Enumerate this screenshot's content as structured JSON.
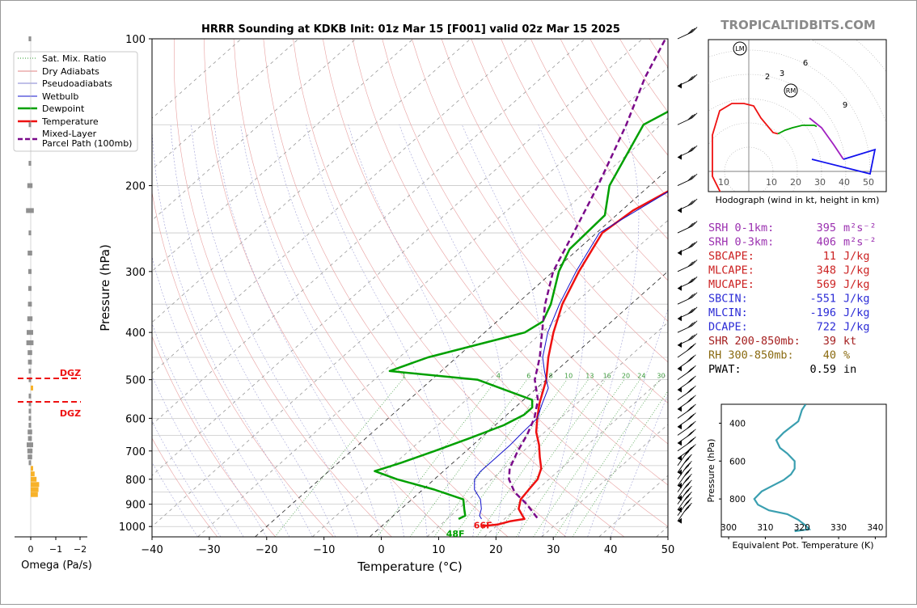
{
  "title": "HRRR Sounding at KDKB Init: 01z Mar 15 [F001] valid 02z Mar 15 2025",
  "watermark": "TROPICALTIDBITS.COM",
  "main": {
    "xlabel": "Temperature (°C)",
    "ylabel": "Pressure (hPa)",
    "x_ticks": [
      "−40",
      "−30",
      "−20",
      "−10",
      "0",
      "10",
      "20",
      "30",
      "40",
      "50"
    ],
    "y_ticks": [
      "100",
      "200",
      "300",
      "400",
      "500",
      "600",
      "700",
      "800",
      "900",
      "1000"
    ]
  },
  "legend": [
    "Sat. Mix. Ratio",
    "Dry Adiabats",
    "Pseudoadiabats",
    "Wetbulb",
    "Dewpoint",
    "Temperature",
    "Mixed-Layer",
    "Parcel Path (100mb)"
  ],
  "mix_ratio_labels": [
    "1",
    "4",
    "6",
    "8",
    "10",
    "13",
    "16",
    "20",
    "24",
    "30",
    "36"
  ],
  "surface_labels": {
    "dewpoint": "48F",
    "temperature": "66F"
  },
  "omega": {
    "label": "Omega (Pa/s)",
    "ticks": [
      "0",
      "−1",
      "−2"
    ],
    "dgz_label": "DGZ"
  },
  "hodograph": {
    "label": "Hodograph (wind in kt, height in km)",
    "x_ticks": [
      "10",
      "10",
      "20",
      "30",
      "40",
      "50"
    ],
    "point_labels": [
      "2",
      "3",
      "6",
      "9"
    ],
    "markers": [
      "LM",
      "RM"
    ]
  },
  "theta_e": {
    "xlabel": "Equivalent Pot. Temperature (K)",
    "ylabel": "Pressure (hPa)",
    "x_ticks": [
      "300",
      "310",
      "320",
      "330",
      "340"
    ],
    "y_ticks": [
      "400",
      "600",
      "800"
    ]
  },
  "indices": [
    {
      "label": "SRH 0-1km:",
      "value": "395",
      "unit": "m²s⁻²",
      "color": "#9b30b0"
    },
    {
      "label": "SRH 0-3km:",
      "value": "406",
      "unit": "m²s⁻²",
      "color": "#9b30b0"
    },
    {
      "label": "SBCAPE:",
      "value": "11",
      "unit": "J/kg",
      "color": "#cc2222"
    },
    {
      "label": "MLCAPE:",
      "value": "348",
      "unit": "J/kg",
      "color": "#cc2222"
    },
    {
      "label": "MUCAPE:",
      "value": "569",
      "unit": "J/kg",
      "color": "#cc2222"
    },
    {
      "label": "SBCIN:",
      "value": "-551",
      "unit": "J/kg",
      "color": "#2b2bd6"
    },
    {
      "label": "MLCIN:",
      "value": "-196",
      "unit": "J/kg",
      "color": "#2b2bd6"
    },
    {
      "label": "DCAPE:",
      "value": "722",
      "unit": "J/kg",
      "color": "#2b2bd6"
    },
    {
      "label": "SHR 200-850mb:",
      "value": "39",
      "unit": "kt",
      "color": "#a52020"
    },
    {
      "label": "RH 300-850mb:",
      "value": "40",
      "unit": "%",
      "color": "#8a6a10"
    },
    {
      "label": "PWAT:",
      "value": "0.59",
      "unit": "in",
      "color": "#000000"
    }
  ],
  "chart_data": [
    {
      "type": "line",
      "title": "HRRR Sounding at KDKB Init: 01z Mar 15 [F001] valid 02z Mar 15 2025",
      "xlabel": "Temperature (°C)",
      "ylabel": "Pressure (hPa)",
      "xlim": [
        -40,
        50
      ],
      "ylim": [
        1050,
        100
      ],
      "y_scale": "log",
      "series": [
        {
          "name": "Temperature",
          "color": "#ee1111",
          "points": [
            [
              998,
              17.5
            ],
            [
              990,
              20
            ],
            [
              975,
              21.5
            ],
            [
              965,
              23.5
            ],
            [
              950,
              22.5
            ],
            [
              920,
              20.5
            ],
            [
              880,
              19
            ],
            [
              840,
              18.5
            ],
            [
              800,
              18
            ],
            [
              760,
              16.5
            ],
            [
              720,
              14
            ],
            [
              680,
              11.5
            ],
            [
              640,
              8.5
            ],
            [
              600,
              6
            ],
            [
              560,
              3.5
            ],
            [
              500,
              0
            ],
            [
              450,
              -4
            ],
            [
              400,
              -8
            ],
            [
              350,
              -12
            ],
            [
              300,
              -15.5
            ],
            [
              250,
              -19
            ],
            [
              225,
              -18
            ],
            [
              200,
              -15
            ],
            [
              160,
              -7
            ],
            [
              140,
              -3
            ],
            [
              120,
              1.5
            ],
            [
              100,
              2.5
            ]
          ]
        },
        {
          "name": "Dewpoint",
          "color": "#00a000",
          "points": [
            [
              965,
              12
            ],
            [
              950,
              12.5
            ],
            [
              920,
              11
            ],
            [
              880,
              9
            ],
            [
              840,
              2
            ],
            [
              800,
              -6.5
            ],
            [
              770,
              -12
            ],
            [
              760,
              -11
            ],
            [
              740,
              -9
            ],
            [
              700,
              -5.5
            ],
            [
              660,
              -2
            ],
            [
              620,
              1.5
            ],
            [
              590,
              3
            ],
            [
              570,
              3
            ],
            [
              550,
              1.5
            ],
            [
              500,
              -12
            ],
            [
              480,
              -29
            ],
            [
              450,
              -25
            ],
            [
              420,
              -18
            ],
            [
              400,
              -13
            ],
            [
              380,
              -12
            ],
            [
              350,
              -14
            ],
            [
              300,
              -19
            ],
            [
              270,
              -21.5
            ],
            [
              230,
              -22
            ],
            [
              200,
              -27
            ],
            [
              150,
              -33
            ],
            [
              130,
              -29
            ],
            [
              110,
              -26
            ],
            [
              100,
              -25
            ]
          ]
        },
        {
          "name": "Wetbulb",
          "color": "#1111cc",
          "points": [
            [
              965,
              16
            ],
            [
              950,
              15
            ],
            [
              920,
              14
            ],
            [
              880,
              12
            ],
            [
              840,
              9
            ],
            [
              800,
              7
            ],
            [
              770,
              6.5
            ],
            [
              720,
              6.5
            ],
            [
              680,
              6.5
            ],
            [
              640,
              6.2
            ],
            [
              600,
              6
            ],
            [
              560,
              4
            ],
            [
              520,
              2
            ],
            [
              500,
              0
            ],
            [
              480,
              -2
            ],
            [
              450,
              -5
            ],
            [
              400,
              -9
            ],
            [
              350,
              -12.5
            ],
            [
              300,
              -16
            ],
            [
              250,
              -19.5
            ],
            [
              200,
              -15
            ],
            [
              160,
              -7
            ],
            [
              140,
              -3
            ],
            [
              120,
              1.5
            ],
            [
              100,
              2.5
            ]
          ]
        },
        {
          "name": "Mixed-Layer Parcel Path (100mb)",
          "color": "#7a0a8a",
          "points": [
            [
              960,
              25.5
            ],
            [
              900,
              21
            ],
            [
              850,
              16.5
            ],
            [
              800,
              13
            ],
            [
              760,
              11
            ],
            [
              700,
              9
            ],
            [
              650,
              7.5
            ],
            [
              600,
              5.5
            ],
            [
              550,
              2.5
            ],
            [
              500,
              -2
            ],
            [
              450,
              -5.5
            ],
            [
              400,
              -10
            ],
            [
              350,
              -15
            ],
            [
              300,
              -20
            ],
            [
              250,
              -24
            ],
            [
              200,
              -29
            ],
            [
              150,
              -36
            ],
            [
              120,
              -42
            ],
            [
              100,
              -46
            ]
          ]
        }
      ]
    },
    {
      "type": "line",
      "title": "",
      "xlabel": "Hodograph (wind in kt, height in km)",
      "series": [
        {
          "name": "0-1 km",
          "color": "#ee1111",
          "points": [
            [
              -8,
              -16
            ],
            [
              -15,
              -2
            ],
            [
              -15,
              15
            ],
            [
              -12,
              25
            ],
            [
              -7,
              28
            ],
            [
              -2,
              28
            ],
            [
              2,
              27
            ],
            [
              5,
              22
            ],
            [
              10,
              16
            ],
            [
              12,
              15.5
            ]
          ]
        },
        {
          "name": "1-3 km",
          "color": "#00a000",
          "points": [
            [
              12,
              15.5
            ],
            [
              15,
              17
            ],
            [
              18,
              18
            ],
            [
              22,
              19
            ],
            [
              27,
              19
            ],
            [
              28,
              18.5
            ]
          ]
        },
        {
          "name": "3-6 km",
          "color": "#a020c0",
          "points": [
            [
              25,
              22
            ],
            [
              30,
              18
            ],
            [
              35,
              11
            ],
            [
              39,
              5
            ]
          ]
        },
        {
          "name": "6-9 km",
          "color": "#1111ee",
          "points": [
            [
              39,
              5
            ],
            [
              52,
              9
            ],
            [
              50,
              -1
            ],
            [
              26,
              5
            ]
          ]
        }
      ]
    },
    {
      "type": "line",
      "title": "",
      "xlabel": "Equivalent Pot. Temperature (K)",
      "ylabel": "Pressure (hPa)",
      "xlim": [
        298,
        343
      ],
      "ylim": [
        1000,
        300
      ],
      "series": [
        {
          "name": "theta-e",
          "color": "#3a9fb0",
          "points": [
            [
              318,
              970
            ],
            [
              322,
              960
            ],
            [
              321,
              940
            ],
            [
              319,
              910
            ],
            [
              316,
              880
            ],
            [
              311,
              860
            ],
            [
              308,
              830
            ],
            [
              307,
              800
            ],
            [
              309,
              760
            ],
            [
              312,
              730
            ],
            [
              315,
              700
            ],
            [
              317,
              670
            ],
            [
              318,
              640
            ],
            [
              318,
              600
            ],
            [
              316,
              560
            ],
            [
              314,
              530
            ],
            [
              313,
              490
            ],
            [
              315,
              450
            ],
            [
              317,
              420
            ],
            [
              319,
              390
            ],
            [
              319.5,
              360
            ],
            [
              320,
              330
            ],
            [
              321,
              300
            ]
          ]
        }
      ]
    },
    {
      "type": "bar",
      "title": "",
      "xlabel": "Omega (Pa/s)",
      "series": [
        {
          "name": "Omega",
          "points": [
            [
              100,
              -0.2
            ],
            [
              150,
              -0.15
            ],
            [
              180,
              -0.2
            ],
            [
              200,
              -0.4
            ],
            [
              225,
              -0.6
            ],
            [
              250,
              -0.2
            ],
            [
              275,
              -0.35
            ],
            [
              300,
              -0.25
            ],
            [
              325,
              -0.25
            ],
            [
              350,
              -0.3
            ],
            [
              375,
              -0.4
            ],
            [
              400,
              -0.5
            ],
            [
              420,
              -0.55
            ],
            [
              440,
              -0.35
            ],
            [
              460,
              -0.3
            ],
            [
              480,
              -0.05
            ],
            [
              500,
              -0.1
            ],
            [
              520,
              0.05
            ],
            [
              540,
              -0.05
            ],
            [
              560,
              -0.1
            ],
            [
              580,
              -0.1
            ],
            [
              600,
              -0.15
            ],
            [
              620,
              -0.2
            ],
            [
              640,
              -0.35
            ],
            [
              660,
              -0.3
            ],
            [
              680,
              -0.5
            ],
            [
              700,
              -0.4
            ],
            [
              720,
              -0.35
            ],
            [
              740,
              -0.1
            ],
            [
              760,
              0.15
            ],
            [
              780,
              0.3
            ],
            [
              800,
              0.45
            ],
            [
              820,
              0.65
            ],
            [
              840,
              0.6
            ],
            [
              860,
              0.55
            ]
          ]
        }
      ]
    }
  ]
}
